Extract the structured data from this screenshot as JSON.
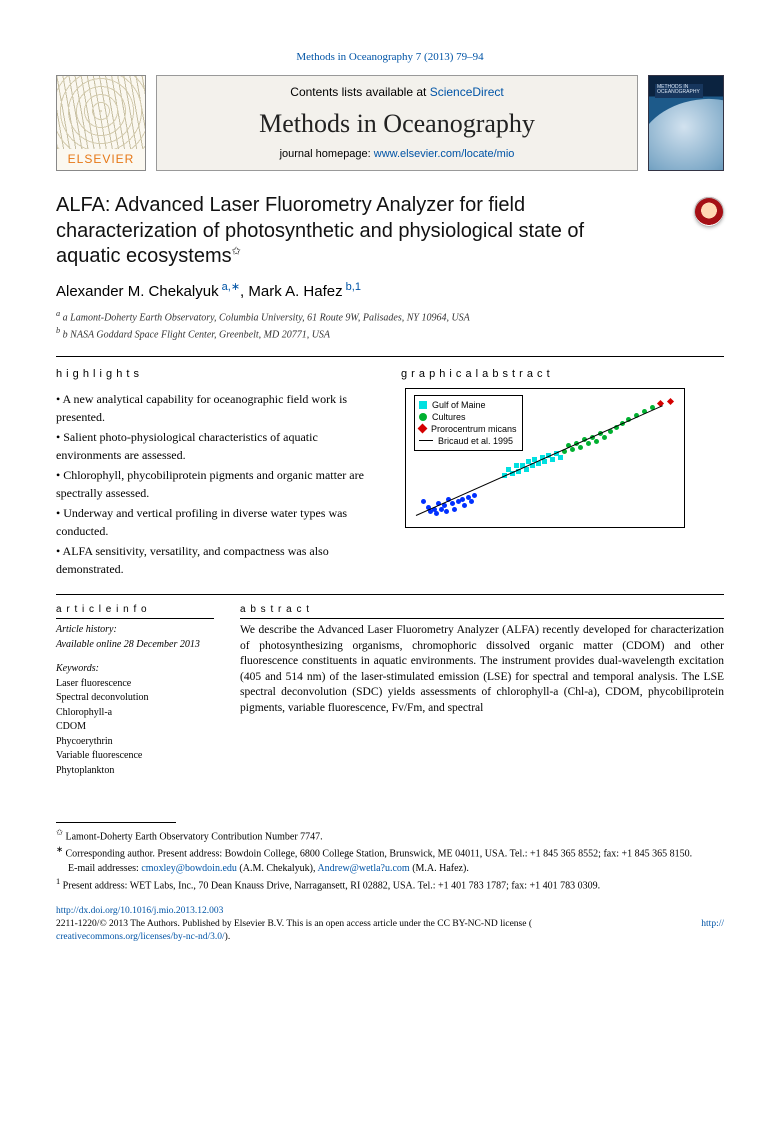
{
  "top_citation": {
    "prefix": "Methods in Oceanography 7 (2013) 79–94",
    "href_text": "Methods in Oceanography 7 (2013) 79–94"
  },
  "banner": {
    "contents_prefix": "Contents lists available at ",
    "contents_link": "ScienceDirect",
    "journal": "Methods in Oceanography",
    "homepage_prefix": "journal homepage: ",
    "homepage_link": "www.elsevier.com/locate/mio",
    "elsevier": "ELSEVIER",
    "cover_label": "METHODS IN\nOCEANOGRAPHY"
  },
  "paper": {
    "title_main": "ALFA: Advanced Laser Fluorometry Analyzer for field characterization of photosynthetic and physiological state of aquatic ecosystems",
    "title_note": "✩",
    "authors": {
      "a1_name": "Alexander M. Chekalyuk",
      "a1_aff": "a,",
      "a1_cor": "∗",
      "a2_name": "Mark A. Hafez",
      "a2_aff": "b,",
      "a2_note": "1"
    },
    "affiliations": {
      "a": "a Lamont-Doherty Earth Observatory, Columbia University, 61 Route 9W, Palisades, NY 10964, USA",
      "b": "b NASA Goddard Space Flight Center, Greenbelt, MD 20771, USA"
    }
  },
  "highlights": {
    "head": "h i g h l i g h t s",
    "items": [
      "• A new analytical capability for oceanographic field work is presented.",
      "• Salient photo-physiological characteristics of aquatic environments are assessed.",
      "• Chlorophyll, phycobiliprotein pigments and organic matter are spectrally assessed.",
      "• Underway and vertical profiling in diverse water types was conducted.",
      "• ALFA sensitivity, versatility, and compactness was also demonstrated."
    ]
  },
  "graphical": {
    "head": "g r a p h i c a l   a b s t r a c t",
    "legend": {
      "l1": "Gulf of Maine",
      "l2": "Cultures",
      "l3": "Prorocentrum micans",
      "l4": "Bricaud et al. 1995"
    },
    "scatter": {
      "blue": [
        [
          15,
          110
        ],
        [
          20,
          116
        ],
        [
          22,
          120
        ],
        [
          26,
          118
        ],
        [
          28,
          122
        ],
        [
          30,
          112
        ],
        [
          33,
          118
        ],
        [
          36,
          114
        ],
        [
          38,
          120
        ],
        [
          40,
          108
        ],
        [
          44,
          112
        ],
        [
          46,
          118
        ],
        [
          50,
          110
        ],
        [
          54,
          108
        ],
        [
          56,
          114
        ],
        [
          60,
          106
        ],
        [
          63,
          110
        ],
        [
          66,
          104
        ]
      ],
      "cyan": [
        [
          96,
          84
        ],
        [
          100,
          78
        ],
        [
          104,
          82
        ],
        [
          108,
          74
        ],
        [
          110,
          80
        ],
        [
          114,
          74
        ],
        [
          118,
          78
        ],
        [
          120,
          70
        ],
        [
          124,
          74
        ],
        [
          126,
          68
        ],
        [
          130,
          72
        ],
        [
          134,
          66
        ],
        [
          136,
          70
        ],
        [
          140,
          64
        ],
        [
          144,
          68
        ],
        [
          148,
          62
        ],
        [
          152,
          66
        ]
      ],
      "green": [
        [
          156,
          60
        ],
        [
          160,
          54
        ],
        [
          164,
          58
        ],
        [
          168,
          52
        ],
        [
          172,
          56
        ],
        [
          176,
          48
        ],
        [
          180,
          52
        ],
        [
          184,
          46
        ],
        [
          188,
          50
        ],
        [
          192,
          42
        ],
        [
          196,
          46
        ],
        [
          202,
          40
        ],
        [
          208,
          36
        ],
        [
          214,
          32
        ],
        [
          220,
          28
        ],
        [
          228,
          24
        ],
        [
          236,
          20
        ],
        [
          244,
          16
        ]
      ],
      "red": [
        [
          252,
          12
        ],
        [
          262,
          10
        ]
      ]
    }
  },
  "article_info": {
    "head": "a r t i c l e   i n f o",
    "history": [
      "Article history:",
      "Available online 28 December 2013"
    ],
    "keywords_head": "Keywords:",
    "keywords": [
      "Laser fluorescence",
      "Spectral deconvolution",
      "Chlorophyll-a",
      "CDOM",
      "Phycoerythrin",
      "Variable fluorescence",
      "Phytoplankton"
    ]
  },
  "abstract": {
    "head": "a b s t r a c t",
    "text": "We describe the Advanced Laser Fluorometry Analyzer (ALFA) recently developed for characterization of photosynthesizing organisms, chromophoric dissolved organic matter (CDOM) and other fluorescence constituents in aquatic environments. The instrument provides dual-wavelength excitation (405 and 514 nm) of the laser-stimulated emission (LSE) for spectral and temporal analysis. The LSE spectral deconvolution (SDC) yields assessments of chlorophyll-a (Chl-a), CDOM, phycobiliprotein pigments, variable fluorescence, Fv/Fm, and spectral"
  },
  "footnotes": {
    "f1_mark": "✩",
    "f1_text": " Lamont-Doherty Earth Observatory Contribution Number 7747.",
    "f2_mark": "∗",
    "f2_text_a": "Corresponding author. Present address: Bowdoin College, 6800 College Station, Brunswick, ME 04011, USA. Tel.: +1 845 365 8552; fax: +1 845 365 8150.",
    "f2_emails_label": "E-mail addresses: ",
    "f2_email1": "cmoxley@bowdoin.edu",
    "f2_mid": " (A.M. Chekalyuk), ",
    "f2_email2": "Andrew@wetla?u.com",
    "f2_tail": " (M.A. Hafez).",
    "f3_mark": "1",
    "f3_text": " Present address: WET Labs, Inc., 70 Dean Knauss Drive, Narragansett, RI 02882, USA. Tel.: +1 401 783 1787; fax: +1 401 783 0309."
  },
  "doi": {
    "link": "http://dx.doi.org/10.1016/j.mio.2013.12.003",
    "line2_a": "2211-1220/© 2013 The Authors. Published by Elsevier B.V. This is an open access article under the CC BY-NC-ND license (",
    "line2_link": "http://",
    "line3_link": "creativecommons.org/licenses/by-nc-nd/3.0/",
    "line3_b": ")."
  }
}
